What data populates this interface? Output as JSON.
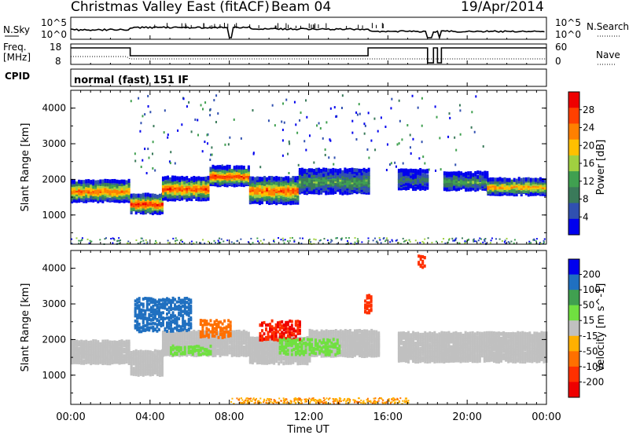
{
  "header": {
    "title": "Christmas Valley East (fitACF)",
    "beam": "Beam 04",
    "date": "19/Apr/2014"
  },
  "strips": {
    "nsky_label": "N.Sky",
    "nsky_ticks": [
      "10^5",
      "10^0"
    ],
    "nsearch_label": "N.Search",
    "nsearch_ticks": [
      "10^5",
      "10^0"
    ],
    "freq_label": "Freq.",
    "freq_unit": "[MHz]",
    "freq_ticks": [
      "18",
      "8"
    ],
    "nave_label": "Nave",
    "nave_ticks": [
      "60",
      "0"
    ],
    "cpid_label": "CPID",
    "cpid_value": "normal (fast) 151 IF"
  },
  "colors": {
    "power_scale": [
      "#0000ee",
      "#3050b0",
      "#3a7a5a",
      "#40a050",
      "#a0d040",
      "#ffc000",
      "#ff8000",
      "#ff4000",
      "#ee0000"
    ],
    "velocity_scale": [
      "#0000ee",
      "#2070c0",
      "#40a050",
      "#70e040",
      "#c0c0c0",
      "#ffb000",
      "#ff7000",
      "#ff3000",
      "#ee0000"
    ],
    "ground_scatter": "#c0c0c0"
  },
  "chart_data": [
    {
      "type": "heatmap",
      "panel": "power",
      "ylabel": "Slant Range [km]",
      "yticks": [
        "1000",
        "2000",
        "3000",
        "4000"
      ],
      "ylim": [
        180,
        4500
      ],
      "colorbar_label": "Power [dB]",
      "colorbar_ticks": [
        "4",
        "8",
        "12",
        "16",
        "20",
        "24",
        "28"
      ],
      "colorbar_range": [
        0,
        30
      ],
      "bands": [
        {
          "t0": 0.0,
          "t1": 3.0,
          "center": 1680,
          "width": 560,
          "peak": 24
        },
        {
          "t0": 3.0,
          "t1": 4.6,
          "center": 1320,
          "width": 520,
          "peak": 28
        },
        {
          "t0": 4.6,
          "t1": 7.0,
          "center": 1750,
          "width": 600,
          "peak": 26
        },
        {
          "t0": 7.0,
          "t1": 9.0,
          "center": 2100,
          "width": 500,
          "peak": 27
        },
        {
          "t0": 9.0,
          "t1": 11.5,
          "center": 1700,
          "width": 700,
          "peak": 25
        },
        {
          "t0": 11.5,
          "t1": 15.0,
          "center": 1950,
          "width": 650,
          "peak": 12
        },
        {
          "t0": 16.5,
          "t1": 18.0,
          "center": 2000,
          "width": 500,
          "peak": 8
        },
        {
          "t0": 18.8,
          "t1": 21.0,
          "center": 1950,
          "width": 450,
          "peak": 12
        },
        {
          "t0": 21.0,
          "t1": 24.0,
          "center": 1800,
          "width": 420,
          "peak": 22
        }
      ]
    },
    {
      "type": "heatmap",
      "panel": "velocity",
      "ylabel": "Slant Range [km]",
      "yticks": [
        "1000",
        "2000",
        "3000",
        "4000"
      ],
      "ylim": [
        180,
        4500
      ],
      "colorbar_label": "Velocity [m s^-1]",
      "colorbar_ticks": [
        "200",
        "100",
        "50",
        "15",
        "-15",
        "-50",
        "-100",
        "-200"
      ],
      "colorbar_range": [
        -250,
        250
      ],
      "bands": [
        {
          "t0": 0.0,
          "t1": 3.0,
          "center": 1650,
          "width": 600,
          "v": 0
        },
        {
          "t0": 3.0,
          "t1": 4.6,
          "center": 1350,
          "width": 650,
          "v": 0
        },
        {
          "t0": 4.6,
          "t1": 9.0,
          "center": 1900,
          "width": 650,
          "v": 0
        },
        {
          "t0": 9.0,
          "t1": 12.0,
          "center": 1700,
          "width": 700,
          "v": 0
        },
        {
          "t0": 12.0,
          "t1": 15.5,
          "center": 1900,
          "width": 700,
          "v": 0
        },
        {
          "t0": 16.5,
          "t1": 24.0,
          "center": 1800,
          "width": 800,
          "v": 0
        }
      ],
      "features": [
        {
          "t0": 3.2,
          "t1": 6.0,
          "center": 2700,
          "width": 900,
          "v": 180
        },
        {
          "t0": 5.0,
          "t1": 7.0,
          "center": 1700,
          "width": 250,
          "v": 60
        },
        {
          "t0": 6.5,
          "t1": 8.0,
          "center": 2300,
          "width": 450,
          "v": -120
        },
        {
          "t0": 9.5,
          "t1": 11.5,
          "center": 2250,
          "width": 500,
          "v": -220
        },
        {
          "t0": 10.5,
          "t1": 13.5,
          "center": 1800,
          "width": 400,
          "v": 60
        },
        {
          "t0": 14.8,
          "t1": 15.2,
          "center": 3000,
          "width": 500,
          "v": -200
        },
        {
          "t0": 17.5,
          "t1": 17.9,
          "center": 4200,
          "width": 300,
          "v": -200
        }
      ]
    }
  ],
  "time_axis": {
    "label": "Time UT",
    "ticks": [
      "00:00",
      "04:00",
      "08:00",
      "12:00",
      "16:00",
      "20:00",
      "00:00"
    ],
    "range_hours": [
      0,
      24
    ]
  }
}
